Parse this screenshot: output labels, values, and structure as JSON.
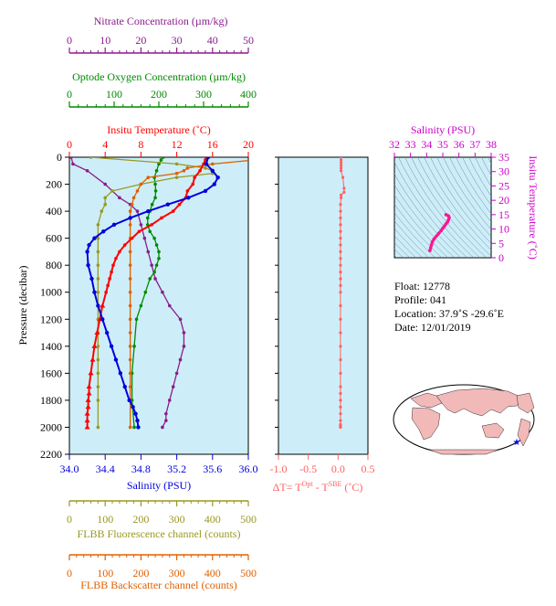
{
  "colors": {
    "nitrate": "#8b1c8b",
    "oxygen": "#008a00",
    "temperature": "#ff0000",
    "salinity": "#0000dd",
    "fluorescence": "#999922",
    "backscatter": "#e06000",
    "delta_t": "#ff6060",
    "ts_salinity": "#cc00cc",
    "ts_curve": "#ff1493",
    "plot_bg": "#cdeef8",
    "map_land": "#f2b9b9",
    "map_ocean": "#ffffff",
    "float_marker": "#0000ff"
  },
  "axes": {
    "nitrate": {
      "label": "Nitrate Concentration (µm/kg)",
      "ticks": [
        "0",
        "10",
        "20",
        "30",
        "40",
        "50"
      ],
      "range": [
        0,
        50
      ]
    },
    "oxygen": {
      "label": "Optode Oxygen Concentration (µm/kg)",
      "ticks": [
        "0",
        "100",
        "200",
        "300",
        "400"
      ],
      "range": [
        0,
        400
      ]
    },
    "temperature": {
      "label": "Insitu Temperature (˚C)",
      "ticks": [
        "0",
        "4",
        "8",
        "12",
        "16",
        "20"
      ],
      "range": [
        0,
        20
      ]
    },
    "salinity": {
      "label": "Salinity (PSU)",
      "ticks": [
        "34.0",
        "34.4",
        "34.8",
        "35.2",
        "35.6",
        "36.0"
      ],
      "range": [
        34.0,
        36.0
      ]
    },
    "pressure": {
      "label": "Pressure (decibar)",
      "ticks": [
        "0",
        "200",
        "400",
        "600",
        "800",
        "1000",
        "1200",
        "1400",
        "1600",
        "1800",
        "2000",
        "2200"
      ],
      "range": [
        0,
        2200
      ]
    },
    "fluorescence": {
      "label": "FLBB Fluorescence channel (counts)",
      "ticks": [
        "0",
        "100",
        "200",
        "300",
        "400",
        "500"
      ],
      "range": [
        0,
        500
      ]
    },
    "backscatter": {
      "label": "FLBB Backscatter channel (counts)",
      "ticks": [
        "0",
        "100",
        "200",
        "300",
        "400",
        "500"
      ],
      "range": [
        0,
        500
      ]
    },
    "delta_t": {
      "label_prefix": "ΔT= T",
      "sup1": "Opt",
      "label_mid": " - T",
      "sup2": "SBE",
      "label_suffix": " (˚C)",
      "ticks": [
        "-1.0",
        "-0.5",
        "0.0",
        "0.5"
      ],
      "range": [
        -1.0,
        0.5
      ]
    },
    "ts_salinity": {
      "label": "Salinity (PSU)",
      "ticks": [
        "32",
        "33",
        "34",
        "35",
        "36",
        "37",
        "38"
      ],
      "range": [
        32,
        38
      ]
    },
    "ts_temperature": {
      "label": "Insitu Temperature (˚C)",
      "ticks": [
        "0",
        "5",
        "10",
        "15",
        "20",
        "25",
        "30",
        "35"
      ],
      "range": [
        0,
        35
      ]
    }
  },
  "info": {
    "float": "Float:  12778",
    "profile": "Profile:  041",
    "location": "Location:  37.9˚S  -29.6˚E",
    "date": "Date:  12/01/2019"
  },
  "chart_data": [
    {
      "type": "line",
      "title": "",
      "ylabel": "Pressure (decibar)",
      "ylim": [
        2200,
        0
      ],
      "series": [
        {
          "name": "Insitu Temperature (˚C)",
          "axis": "temperature",
          "x": [
            15.3,
            15.2,
            15.0,
            14.6,
            14.0,
            13.8,
            13.2,
            13.0,
            12.3,
            11.6,
            10.3,
            9.2,
            7.8,
            7.0,
            6.2,
            5.6,
            5.2,
            4.9,
            4.7,
            4.5,
            4.3,
            4.1,
            3.7,
            3.4,
            3.1,
            2.8,
            2.6,
            2.4,
            2.2,
            2.2,
            2.1,
            2.1,
            2.0,
            2.0,
            2.0
          ],
          "y": [
            0,
            20,
            50,
            100,
            150,
            200,
            250,
            300,
            350,
            400,
            450,
            500,
            550,
            600,
            650,
            700,
            750,
            800,
            850,
            900,
            950,
            1000,
            1100,
            1200,
            1300,
            1400,
            1500,
            1600,
            1700,
            1750,
            1800,
            1850,
            1900,
            1950,
            2000
          ]
        },
        {
          "name": "Salinity (PSU)",
          "axis": "salinity",
          "x": [
            35.55,
            35.53,
            35.6,
            35.66,
            35.62,
            35.52,
            35.33,
            35.1,
            34.88,
            34.68,
            34.5,
            34.38,
            34.28,
            34.22,
            34.2,
            34.21,
            34.25,
            34.28,
            34.32,
            34.37,
            34.42,
            34.47,
            34.52,
            34.57,
            34.62,
            34.67,
            34.71,
            34.74,
            34.76,
            34.77
          ],
          "y": [
            0,
            50,
            100,
            150,
            200,
            250,
            300,
            350,
            400,
            450,
            500,
            550,
            600,
            650,
            700,
            800,
            900,
            1000,
            1100,
            1200,
            1300,
            1400,
            1500,
            1600,
            1700,
            1800,
            1850,
            1900,
            1950,
            2000
          ]
        },
        {
          "name": "Nitrate Concentration (µm/kg)",
          "axis": "nitrate",
          "x": [
            0.5,
            1,
            5,
            10,
            14,
            17,
            19,
            20,
            21,
            22,
            23,
            24,
            26,
            28,
            31,
            32,
            32,
            31,
            30,
            29,
            28,
            27,
            27,
            26
          ],
          "y": [
            0,
            50,
            100,
            200,
            300,
            350,
            400,
            500,
            600,
            700,
            800,
            900,
            1000,
            1100,
            1200,
            1300,
            1400,
            1500,
            1600,
            1700,
            1800,
            1900,
            1950,
            2000
          ]
        },
        {
          "name": "Optode Oxygen Concentration (µm/kg)",
          "axis": "oxygen",
          "x": [
            210,
            205,
            200,
            195,
            190,
            192,
            193,
            192,
            185,
            180,
            175,
            175,
            180,
            190,
            195,
            200,
            200,
            195,
            190,
            180,
            170,
            160,
            150,
            145,
            140,
            140,
            145
          ],
          "y": [
            0,
            20,
            50,
            100,
            150,
            200,
            250,
            300,
            350,
            400,
            450,
            500,
            550,
            600,
            650,
            700,
            750,
            800,
            850,
            900,
            1000,
            1100,
            1200,
            1400,
            1600,
            1800,
            2000
          ]
        },
        {
          "name": "FLBB Fluorescence channel (counts)",
          "axis": "fluorescence",
          "x": [
            60,
            300,
            380,
            400,
            400,
            300,
            200,
            120,
            100,
            100,
            90,
            80,
            80,
            80,
            80,
            80,
            80,
            80,
            80,
            80,
            80,
            80,
            80,
            80,
            80,
            80
          ],
          "y": [
            0,
            50,
            80,
            100,
            120,
            150,
            200,
            250,
            300,
            350,
            400,
            500,
            600,
            700,
            800,
            900,
            1000,
            1100,
            1200,
            1300,
            1400,
            1500,
            1600,
            1700,
            1800,
            2000
          ]
        },
        {
          "name": "FLBB Backscatter channel (counts)",
          "axis": "backscatter",
          "x": [
            600,
            400,
            330,
            320,
            300,
            220,
            200,
            190,
            180,
            175,
            170,
            170,
            170,
            170,
            170,
            170,
            170,
            170,
            170,
            170,
            170,
            170,
            170,
            170,
            170,
            170
          ],
          "y": [
            0,
            50,
            80,
            100,
            120,
            150,
            200,
            250,
            300,
            350,
            400,
            500,
            600,
            700,
            800,
            900,
            1000,
            1100,
            1200,
            1300,
            1400,
            1500,
            1600,
            1700,
            1800,
            2000
          ]
        }
      ]
    },
    {
      "type": "scatter",
      "title": "",
      "xlabel": "ΔT= T(Opt) - T(SBE) (˚C)",
      "ylim": [
        2200,
        0
      ],
      "x": [
        0.05,
        0.05,
        0.05,
        0.05,
        0.05,
        0.05,
        0.08,
        0.1,
        0.1,
        0.05,
        0.05,
        0.04,
        0.04,
        0.04,
        0.04,
        0.04,
        0.04,
        0.04,
        0.04,
        0.04,
        0.04,
        0.04,
        0.04,
        0.04,
        0.04,
        0.04,
        0.04,
        0.04,
        0.04,
        0.04,
        0.04,
        0.04,
        0.04,
        0.04,
        0.04,
        0.04,
        0.04,
        0.04,
        0.04,
        0.04
      ],
      "y": [
        0,
        20,
        40,
        60,
        80,
        100,
        150,
        230,
        260,
        280,
        300,
        350,
        400,
        450,
        500,
        550,
        600,
        650,
        700,
        750,
        800,
        850,
        900,
        950,
        1000,
        1100,
        1200,
        1300,
        1400,
        1500,
        1600,
        1700,
        1750,
        1800,
        1850,
        1900,
        1950,
        1980,
        1990,
        2000
      ]
    },
    {
      "type": "line",
      "title": "",
      "xlabel": "Salinity (PSU)",
      "ylabel": "Insitu Temperature (˚C)",
      "xlim": [
        32,
        38
      ],
      "ylim": [
        0,
        35
      ],
      "x": [
        34.2,
        34.25,
        34.3,
        34.35,
        34.45,
        34.6,
        34.75,
        34.9,
        35.0,
        35.1,
        35.2,
        35.3,
        35.35,
        35.4,
        35.35,
        35.2
      ],
      "y": [
        2.5,
        3.5,
        4.5,
        5.5,
        6.5,
        7.5,
        8.5,
        9.5,
        10.3,
        11.0,
        11.8,
        12.5,
        13.2,
        14.0,
        14.6,
        15.0
      ]
    }
  ]
}
